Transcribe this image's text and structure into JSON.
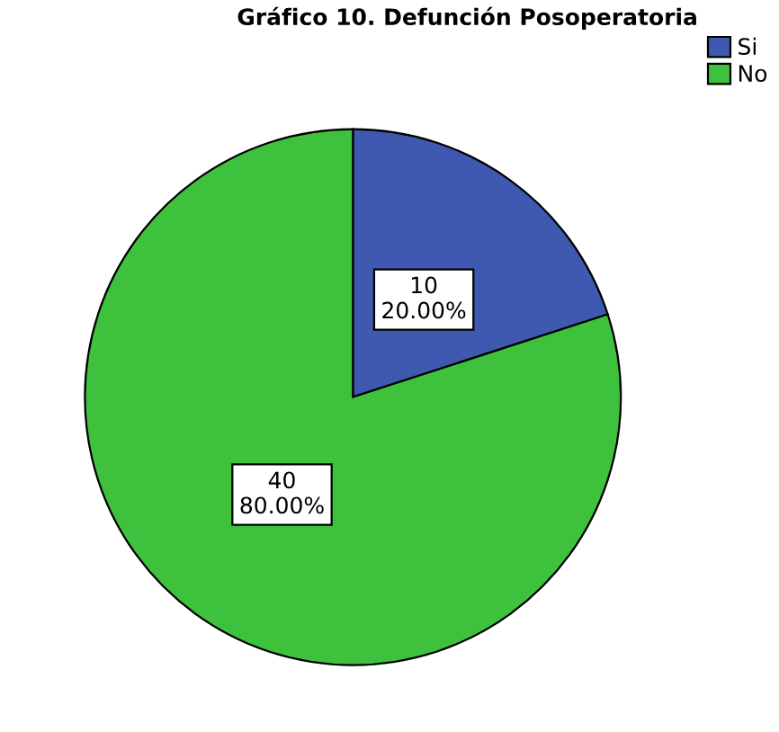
{
  "chart_data": {
    "type": "pie",
    "title": "Gráfico 10. Defunción Posoperatoria",
    "categories": [
      "Si",
      "No"
    ],
    "values": [
      10,
      40
    ],
    "colors": [
      "#3f58b0",
      "#3ec23e"
    ],
    "value_labels": [
      "10\n20.00%",
      "40\n80.00%"
    ],
    "legend": "top right"
  }
}
